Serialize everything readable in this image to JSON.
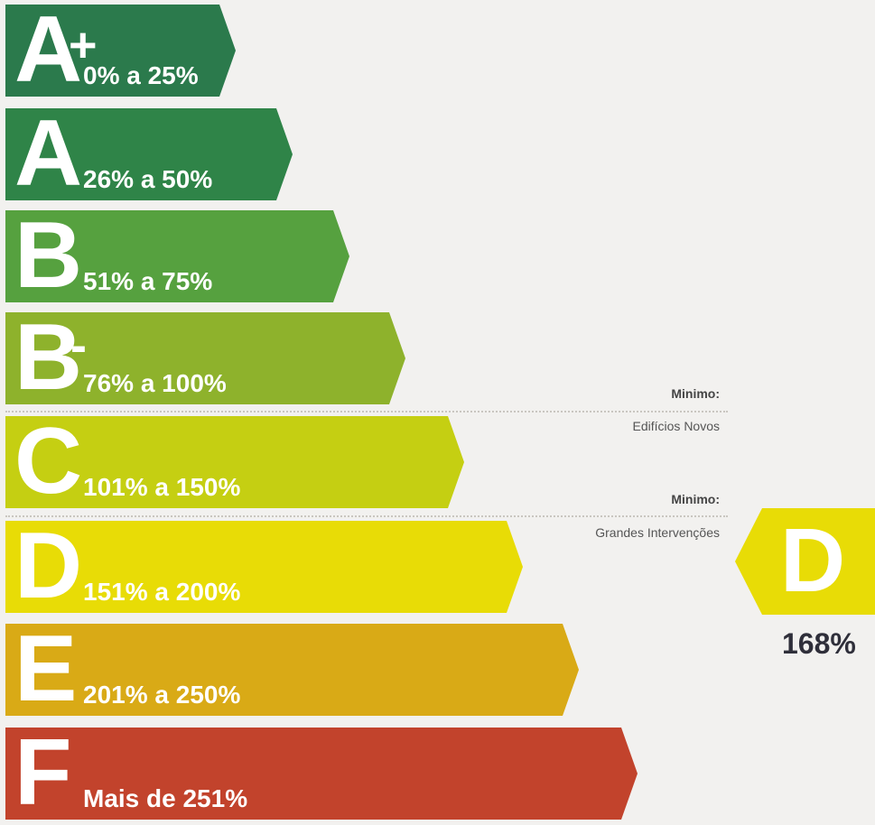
{
  "bands": [
    {
      "letter": "A",
      "suffix": "+",
      "range": "0% a 25%",
      "color": "#2b7a4c"
    },
    {
      "letter": "A",
      "suffix": "",
      "range": "26% a 50%",
      "color": "#2f8448"
    },
    {
      "letter": "B",
      "suffix": "",
      "range": "51% a 75%",
      "color": "#56a13f"
    },
    {
      "letter": "B",
      "suffix": "-",
      "range": "76% a 100%",
      "color": "#8eb22c"
    },
    {
      "letter": "C",
      "suffix": "",
      "range": "101% a 150%",
      "color": "#c5cf12"
    },
    {
      "letter": "D",
      "suffix": "",
      "range": "151% a 200%",
      "color": "#e8dc06"
    },
    {
      "letter": "E",
      "suffix": "",
      "range": "201% a 250%",
      "color": "#d9aa16"
    },
    {
      "letter": "F",
      "suffix": "",
      "range": "Mais de 251%",
      "color": "#c2432c"
    }
  ],
  "minimum_new": {
    "title": "Minimo:",
    "label": "Edifícios Novos"
  },
  "minimum_renovation": {
    "title": "Minimo:",
    "label": "Grandes Intervenções"
  },
  "rating": {
    "letter": "D",
    "value": "168%",
    "color": "#e8dc06"
  }
}
